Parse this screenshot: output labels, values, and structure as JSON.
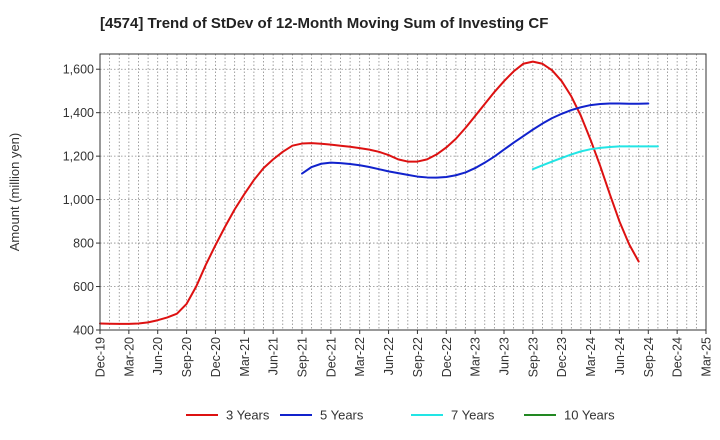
{
  "chart_data": {
    "type": "line",
    "title": "[4574]  Trend of StDev of 12-Month Moving Sum of Investing CF",
    "xlabel": "",
    "ylabel": "Amount (million yen)",
    "ylim": [
      400,
      1670
    ],
    "yticks": [
      400,
      600,
      800,
      1000,
      1200,
      1400,
      1600
    ],
    "ytick_labels": [
      "400",
      "600",
      "800",
      "1,000",
      "1,200",
      "1,400",
      "1,600"
    ],
    "x_tick_labels": [
      "Dec-19",
      "Mar-20",
      "Jun-20",
      "Sep-20",
      "Dec-20",
      "Mar-21",
      "Jun-21",
      "Sep-21",
      "Dec-21",
      "Mar-22",
      "Jun-22",
      "Sep-22",
      "Dec-22",
      "Mar-23",
      "Jun-23",
      "Sep-23",
      "Dec-23",
      "Mar-24",
      "Jun-24",
      "Sep-24",
      "Dec-24",
      "Mar-25"
    ],
    "grid": true,
    "legend_position": "bottom",
    "series": [
      {
        "name": "3 Years",
        "color": "#dd1111",
        "start_index": 0,
        "values": [
          430,
          429,
          428,
          428,
          430,
          435,
          445,
          458,
          475,
          520,
          600,
          700,
          790,
          875,
          955,
          1025,
          1090,
          1145,
          1185,
          1220,
          1248,
          1258,
          1260,
          1257,
          1253,
          1248,
          1243,
          1237,
          1230,
          1220,
          1205,
          1185,
          1175,
          1175,
          1185,
          1208,
          1240,
          1280,
          1330,
          1385,
          1440,
          1495,
          1545,
          1590,
          1625,
          1635,
          1625,
          1595,
          1545,
          1475,
          1385,
          1275,
          1155,
          1025,
          900,
          795,
          715
        ]
      },
      {
        "name": "5 Years",
        "color": "#1122cc",
        "start_index": 21,
        "values": [
          1120,
          1150,
          1165,
          1170,
          1168,
          1164,
          1158,
          1150,
          1140,
          1130,
          1122,
          1114,
          1106,
          1102,
          1101,
          1104,
          1112,
          1125,
          1145,
          1170,
          1198,
          1230,
          1262,
          1292,
          1322,
          1350,
          1375,
          1395,
          1412,
          1425,
          1435,
          1440,
          1442,
          1442,
          1441,
          1441,
          1442
        ]
      },
      {
        "name": "7 Years",
        "color": "#22e5e5",
        "start_index": 45,
        "values": [
          1140,
          1158,
          1175,
          1192,
          1208,
          1222,
          1232,
          1238,
          1242,
          1245,
          1245,
          1245,
          1245,
          1245
        ]
      },
      {
        "name": "10 Years",
        "color": "#228822",
        "start_index": null,
        "values": []
      }
    ]
  }
}
